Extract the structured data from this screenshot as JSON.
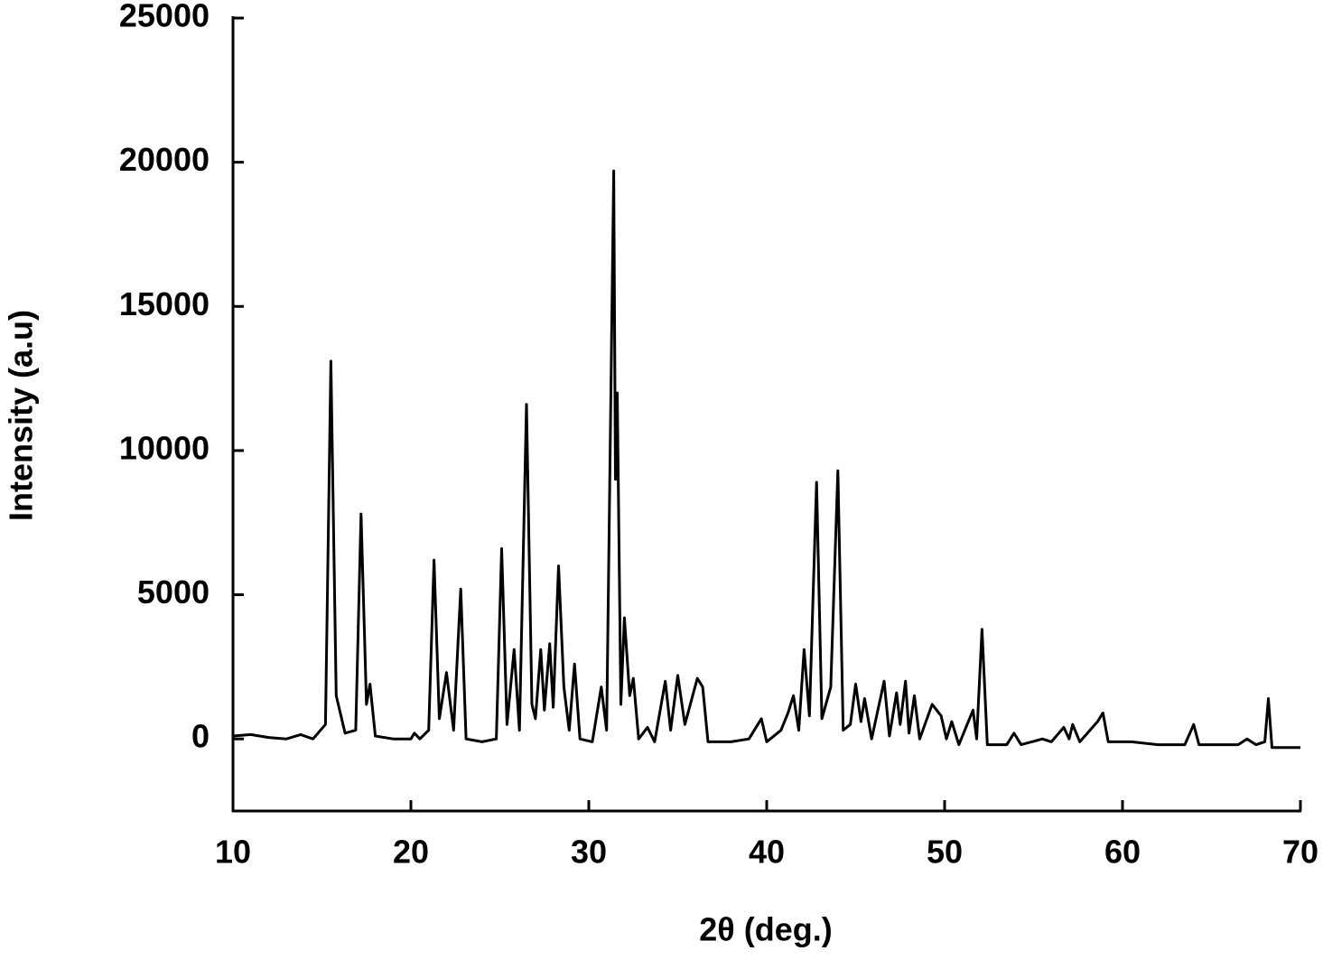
{
  "chart_data": {
    "type": "line",
    "xlabel": "2θ (deg.)",
    "ylabel": "Intensity (a.u)",
    "color": "#000000",
    "xlim": [
      10,
      70
    ],
    "xticks": [
      10,
      20,
      30,
      40,
      50,
      60,
      70
    ],
    "ylim": [
      -2500,
      25000
    ],
    "yticks": [
      0,
      5000,
      10000,
      15000,
      20000,
      25000
    ],
    "x": [
      10,
      11,
      12,
      13,
      13.8,
      14.5,
      15.2,
      15.5,
      15.8,
      16.3,
      16.9,
      17.2,
      17.5,
      17.7,
      18.0,
      19,
      20,
      20.2,
      20.5,
      21.0,
      21.3,
      21.6,
      22.0,
      22.4,
      22.8,
      23.1,
      24,
      24.8,
      25.1,
      25.4,
      25.8,
      26.1,
      26.5,
      26.8,
      27.0,
      27.3,
      27.5,
      27.8,
      28.0,
      28.3,
      28.6,
      28.9,
      29.2,
      29.5,
      30.2,
      30.7,
      31.0,
      31.4,
      31.5,
      31.6,
      31.8,
      32.0,
      32.3,
      32.5,
      32.8,
      33.3,
      33.7,
      34.3,
      34.6,
      35.0,
      35.4,
      36.1,
      36.4,
      36.7,
      38,
      39,
      39.7,
      40,
      40.8,
      41.2,
      41.5,
      41.8,
      42.1,
      42.4,
      42.8,
      43.1,
      43.6,
      44.0,
      44.3,
      44.7,
      45.0,
      45.3,
      45.5,
      45.9,
      46.6,
      46.9,
      47.3,
      47.5,
      47.8,
      48.0,
      48.3,
      48.6,
      49.3,
      49.8,
      50.1,
      50.4,
      50.8,
      51.6,
      51.8,
      52.1,
      52.4,
      53.5,
      53.9,
      54.3,
      55.5,
      56.0,
      56.7,
      57.0,
      57.2,
      57.6,
      58.6,
      58.9,
      59.2,
      60.5,
      62,
      63.5,
      64.0,
      64.3,
      66.5,
      67.0,
      67.5,
      68.0,
      68.2,
      68.4,
      70
    ],
    "values": [
      100,
      150,
      50,
      0,
      150,
      0,
      500,
      13100,
      1500,
      200,
      300,
      7800,
      1200,
      1900,
      100,
      0,
      0,
      200,
      0,
      300,
      6200,
      700,
      2300,
      300,
      5200,
      0,
      -100,
      0,
      6600,
      500,
      3100,
      300,
      11600,
      1200,
      700,
      3100,
      1000,
      3300,
      1100,
      6000,
      1800,
      300,
      2600,
      0,
      -100,
      1800,
      300,
      19700,
      9000,
      12000,
      1200,
      4200,
      1500,
      2100,
      0,
      400,
      -100,
      2000,
      300,
      2200,
      500,
      2100,
      1800,
      -100,
      -100,
      0,
      700,
      -100,
      300,
      900,
      1500,
      300,
      3100,
      800,
      8900,
      700,
      1800,
      9300,
      300,
      500,
      1900,
      600,
      1400,
      0,
      2000,
      100,
      1600,
      500,
      2000,
      200,
      1500,
      0,
      1200,
      800,
      0,
      600,
      -200,
      1000,
      0,
      3800,
      -200,
      -200,
      200,
      -200,
      0,
      -100,
      400,
      0,
      500,
      -100,
      600,
      900,
      -100,
      -100,
      -200,
      -200,
      500,
      -200,
      -200,
      0,
      -200,
      -100,
      1400,
      -300,
      -300
    ]
  }
}
